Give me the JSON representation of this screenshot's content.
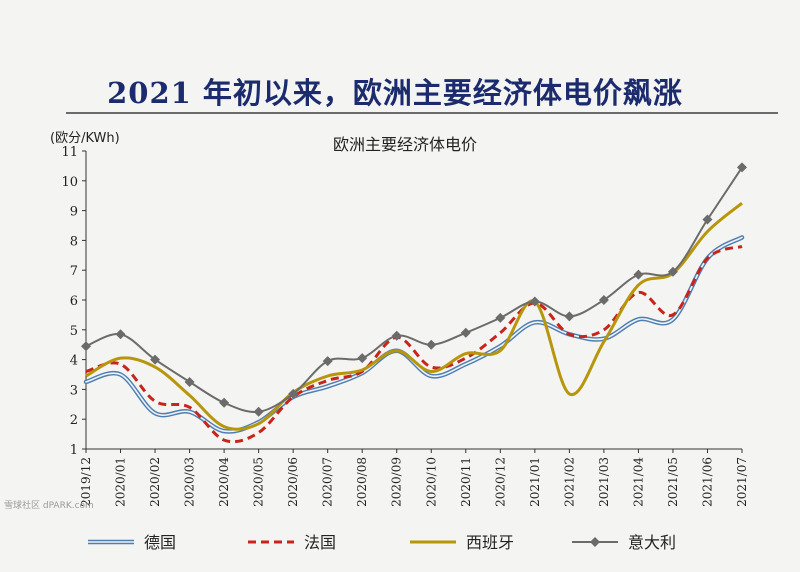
{
  "page": {
    "headline": "2021 年初以来，欧洲主要经济体电价飙涨",
    "watermark": "雪球社区 dPARK.com"
  },
  "chart_data": {
    "type": "line",
    "title": "欧洲主要经济体电价",
    "ylabel": "(欧分/KWh)",
    "xlabel": "",
    "ylim": [
      1,
      11
    ],
    "yticks": [
      1,
      2,
      3,
      4,
      5,
      6,
      7,
      8,
      9,
      10,
      11
    ],
    "grid": false,
    "legend_position": "bottom",
    "categories": [
      "2019/12",
      "2020/01",
      "2020/02",
      "2020/03",
      "2020/04",
      "2020/05",
      "2020/06",
      "2020/07",
      "2020/08",
      "2020/09",
      "2020/10",
      "2020/11",
      "2020/12",
      "2021/01",
      "2021/02",
      "2021/03",
      "2021/04",
      "2021/05",
      "2021/06",
      "2021/07"
    ],
    "series": [
      {
        "name": "德国",
        "color": "#4f7fb0",
        "style": "double",
        "values": [
          3.25,
          3.5,
          2.2,
          2.25,
          1.6,
          1.9,
          2.75,
          3.1,
          3.55,
          4.3,
          3.45,
          3.85,
          4.45,
          5.25,
          4.85,
          4.7,
          5.35,
          5.35,
          7.4,
          8.1
        ]
      },
      {
        "name": "法国",
        "color": "#c8241c",
        "style": "dashed",
        "values": [
          3.6,
          3.85,
          2.6,
          2.4,
          1.3,
          1.55,
          2.75,
          3.3,
          3.6,
          4.75,
          3.75,
          4.05,
          4.9,
          5.9,
          4.85,
          5.0,
          6.25,
          5.5,
          7.4,
          7.8
        ]
      },
      {
        "name": "西班牙",
        "color": "#b8960c",
        "style": "solid",
        "values": [
          3.45,
          4.05,
          3.75,
          2.8,
          1.75,
          1.85,
          2.9,
          3.45,
          3.65,
          4.3,
          3.6,
          4.2,
          4.3,
          5.95,
          2.85,
          4.6,
          6.5,
          6.9,
          8.3,
          9.25
        ]
      },
      {
        "name": "意大利",
        "color": "#6b6b6b",
        "style": "marker",
        "values": [
          4.45,
          4.85,
          4.0,
          3.25,
          2.55,
          2.25,
          2.85,
          3.95,
          4.05,
          4.8,
          4.5,
          4.9,
          5.4,
          5.95,
          5.45,
          6.0,
          6.85,
          6.95,
          8.7,
          10.45
        ]
      }
    ]
  }
}
